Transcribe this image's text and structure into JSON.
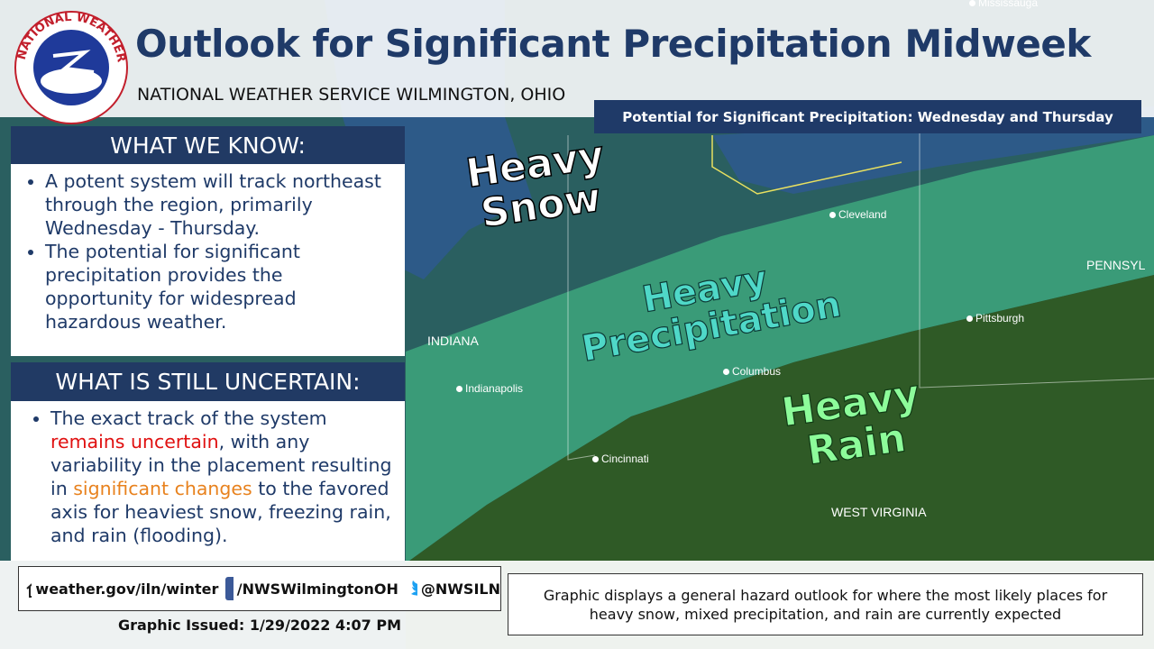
{
  "header": {
    "logo_text": "NATIONAL WEATHER SERVICE",
    "title": "Outlook for Significant Precipitation Midweek",
    "subtitle": "NATIONAL WEATHER SERVICE WILMINGTON, OHIO"
  },
  "map": {
    "title": "Potential for Significant Precipitation: Wednesday and Thursday",
    "zones": [
      [
        "Heavy",
        "Snow"
      ],
      [
        "Heavy",
        "Precipitation"
      ],
      [
        "Heavy",
        "Rain"
      ]
    ],
    "cities": [
      "Mississauga",
      "Cleveland",
      "Pittsburgh",
      "Columbus",
      "Indianapolis",
      "Cincinnati"
    ],
    "states": [
      "INDIANA",
      "WEST VIRGINIA",
      "PENNSYL"
    ]
  },
  "know": {
    "heading": "WHAT WE KNOW:",
    "bullets": [
      "A potent system will track northeast through the region, primarily Wednesday - Thursday.",
      "The potential for significant precipitation provides the opportunity for widespread hazardous weather."
    ]
  },
  "uncertain": {
    "heading": "WHAT IS STILL UNCERTAIN:",
    "bullet_parts": [
      "The exact track of the system ",
      "remains uncertain",
      ", with any variability in the placement resulting in ",
      "significant changes",
      " to the favored axis for heaviest snow, freezing rain, and rain (flooding)."
    ]
  },
  "footer": {
    "website": "weather.gov/iln/winter",
    "facebook": "/NWSWilmingtonOH",
    "twitter": "@NWSILN",
    "issued": "Graphic  Issued: 1/29/2022 4:07 PM",
    "disclaimer": "Graphic displays a general hazard outlook for where the most likely places for heavy snow, mixed precipitation, and rain are currently expected"
  }
}
